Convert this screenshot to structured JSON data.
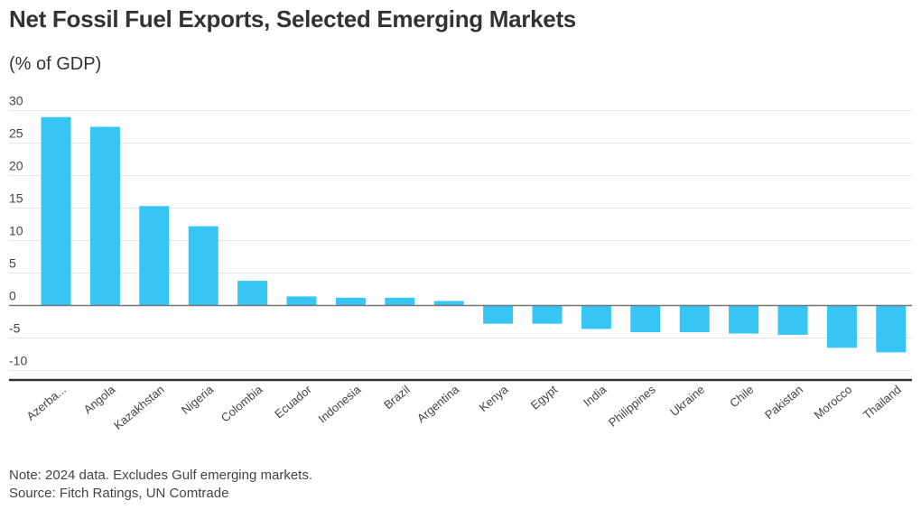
{
  "chart_data": {
    "type": "bar",
    "title": "Net Fossil Fuel Exports, Selected Emerging Markets",
    "subtitle": "(% of GDP)",
    "xlabel": "",
    "ylabel": "(% of GDP)",
    "ylim": [
      -12,
      30
    ],
    "yticks": [
      30,
      25,
      20,
      15,
      10,
      5,
      0,
      -5,
      -10
    ],
    "ytick_labels": [
      "30",
      "25",
      "20",
      "15",
      "10",
      "5",
      "0",
      "-5",
      "-10"
    ],
    "grid": true,
    "categories": [
      "Azerba...",
      "Angola",
      "Kazakhstan",
      "Nigeria",
      "Colombia",
      "Ecuador",
      "Indonesia",
      "Brazil",
      "Argentina",
      "Kenya",
      "Egypt",
      "India",
      "Philippines",
      "Ukraine",
      "Chile",
      "Pakistan",
      "Morocco",
      "Thailand"
    ],
    "values": [
      29.0,
      27.5,
      15.3,
      12.2,
      3.8,
      1.4,
      1.2,
      1.2,
      0.7,
      -2.8,
      -2.8,
      -3.6,
      -4.1,
      -4.1,
      -4.3,
      -4.5,
      -6.5,
      -7.2
    ],
    "bar_color": "#36c5f4",
    "note": "Note: 2024 data. Excludes Gulf emerging markets.",
    "source": "Source: Fitch Ratings, UN Comtrade"
  }
}
